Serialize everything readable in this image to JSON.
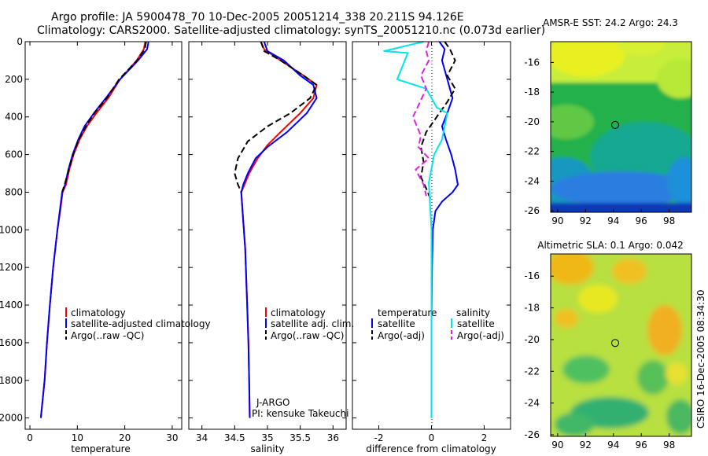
{
  "header": {
    "line1": "Argo profile: JA 5900478_70 10-Dec-2005 20051214_338 20.211S 94.126E",
    "line2": "Climatology: CARS2000. Satellite-adjusted climatology: synTS_20051210.nc (0.073d earlier)"
  },
  "credit": "CSIRO 16-Dec-2005 08:34:30",
  "colors": {
    "climatology": "#ff0000",
    "satellite": "#0000ff",
    "argo": "#000000",
    "cyan": "#00e5ee",
    "magenta": "#e020e0"
  },
  "chart_data": [
    {
      "type": "line",
      "title": "",
      "xlabel": "temperature",
      "ylabel": "",
      "xlim": [
        -1,
        32
      ],
      "ylim": [
        0,
        2060
      ],
      "xticks": [
        0,
        10,
        20,
        30
      ],
      "yticks": [
        0,
        200,
        400,
        600,
        800,
        1000,
        1200,
        1400,
        1600,
        1800,
        2000
      ],
      "y_reversed": true,
      "legend": {
        "position": "lower-right",
        "entries": [
          "climatology",
          "satellite-adjusted climatology",
          "Argo(..raw -QC)"
        ]
      },
      "series": [
        {
          "name": "climatology",
          "color": "red",
          "style": "solid",
          "x": [
            24.3,
            24.0,
            22.5,
            19.0,
            16.5,
            14.0,
            12.0,
            10.5,
            9.2,
            8.3,
            7.6,
            6.9,
            6.4,
            5.8,
            4.9,
            4.2,
            3.6,
            3.1,
            2.7,
            2.3
          ],
          "y": [
            0,
            40,
            100,
            200,
            300,
            380,
            450,
            520,
            600,
            680,
            760,
            800,
            900,
            1000,
            1200,
            1400,
            1600,
            1800,
            1900,
            2000
          ]
        },
        {
          "name": "satellite-adjusted climatology",
          "color": "blue",
          "style": "solid",
          "x": [
            25.0,
            24.7,
            22.8,
            19.0,
            16.0,
            13.5,
            11.5,
            10.2,
            9.0,
            8.1,
            7.4,
            6.8,
            6.3,
            5.8,
            4.9,
            4.2,
            3.6,
            3.1,
            2.7,
            2.3
          ],
          "y": [
            0,
            40,
            100,
            200,
            300,
            380,
            450,
            520,
            600,
            680,
            760,
            800,
            900,
            1000,
            1200,
            1400,
            1600,
            1800,
            1900,
            2000
          ]
        },
        {
          "name": "Argo(..raw -QC)",
          "color": "black",
          "style": "dashed",
          "x": [
            24.5,
            24.2,
            22.6,
            18.8,
            16.2,
            13.6,
            11.8,
            10.3,
            9.1,
            8.2,
            7.3,
            6.8
          ],
          "y": [
            0,
            40,
            100,
            200,
            300,
            380,
            450,
            520,
            600,
            680,
            760,
            800
          ]
        }
      ]
    },
    {
      "type": "line",
      "title": "",
      "xlabel": "salinity",
      "ylabel": "",
      "xlim": [
        33.8,
        36.2
      ],
      "ylim": [
        0,
        2060
      ],
      "xticks": [
        34,
        34.5,
        35,
        35.5,
        36
      ],
      "y_reversed": true,
      "legend": {
        "position": "lower-right",
        "entries": [
          "climatology",
          "satellite adj. clim.",
          "Argo(..raw -QC)"
        ]
      },
      "annotation": {
        "line1": "J-ARGO",
        "line2": "PI: kensuke Takeuchi"
      },
      "series": [
        {
          "name": "climatology",
          "color": "red",
          "style": "solid",
          "x": [
            34.9,
            34.95,
            35.2,
            35.55,
            35.75,
            35.7,
            35.5,
            35.2,
            35.0,
            34.85,
            34.72,
            34.65,
            34.6,
            34.62,
            34.66,
            34.69,
            34.71,
            34.72,
            34.73
          ],
          "y": [
            0,
            40,
            100,
            180,
            230,
            300,
            380,
            480,
            550,
            620,
            700,
            760,
            800,
            900,
            1100,
            1400,
            1600,
            1800,
            2000
          ]
        },
        {
          "name": "satellite adj. clim.",
          "color": "blue",
          "style": "solid",
          "x": [
            34.95,
            35.0,
            35.25,
            35.5,
            35.7,
            35.75,
            35.6,
            35.3,
            35.0,
            34.82,
            34.7,
            34.63,
            34.6,
            34.62,
            34.66,
            34.69,
            34.71,
            34.72,
            34.73
          ],
          "y": [
            0,
            50,
            100,
            180,
            230,
            300,
            380,
            480,
            560,
            620,
            700,
            760,
            800,
            900,
            1100,
            1400,
            1600,
            1800,
            2000
          ]
        },
        {
          "name": "Argo(..raw -QC)",
          "color": "black",
          "style": "dashed",
          "x": [
            34.9,
            34.95,
            35.2,
            35.55,
            35.75,
            35.65,
            35.35,
            35.0,
            34.7,
            34.55,
            34.5,
            34.55,
            34.6
          ],
          "y": [
            0,
            50,
            100,
            180,
            230,
            300,
            380,
            450,
            530,
            620,
            700,
            760,
            800
          ]
        }
      ]
    },
    {
      "type": "line",
      "title": "",
      "xlabel": "difference from climatology",
      "ylabel": "",
      "xlim": [
        -3,
        3
      ],
      "ylim": [
        0,
        2060
      ],
      "xticks": [
        -2,
        0,
        2
      ],
      "y_reversed": true,
      "legend": {
        "position": "lower-right",
        "col1_head": "temperature",
        "col2_head": "salinity",
        "entries": [
          "satellite",
          "Argo(-adj)",
          "satellite",
          "Argo(-adj)"
        ]
      },
      "series": [
        {
          "name": "temperature satellite",
          "color": "blue",
          "style": "solid",
          "x": [
            0.3,
            0.5,
            0.4,
            0.6,
            0.8,
            0.6,
            0.4,
            0.55,
            0.75,
            0.9,
            1.0,
            0.8,
            0.4,
            0.15,
            0.05,
            0.02,
            0.0,
            0.0,
            0.0
          ],
          "y": [
            0,
            40,
            100,
            200,
            300,
            380,
            450,
            520,
            600,
            680,
            760,
            800,
            850,
            900,
            1000,
            1200,
            1500,
            1800,
            2000
          ]
        },
        {
          "name": "temperature Argo(-adj)",
          "color": "black",
          "style": "dashed",
          "x": [
            0.5,
            0.7,
            0.9,
            0.6,
            0.9,
            0.6,
            0.2,
            -0.2,
            -0.4,
            -0.3,
            -0.4,
            -0.2,
            0.0
          ],
          "y": [
            0,
            40,
            100,
            180,
            250,
            320,
            400,
            480,
            560,
            640,
            720,
            780,
            850
          ]
        },
        {
          "name": "salinity satellite",
          "color": "cyan",
          "style": "solid",
          "x": [
            -0.3,
            -1.8,
            -0.9,
            -1.3,
            -0.2,
            0.2,
            0.6,
            0.5,
            0.4,
            0.1,
            -0.1,
            0.0,
            0.0
          ],
          "y": [
            0,
            50,
            60,
            200,
            250,
            350,
            380,
            450,
            520,
            600,
            750,
            1000,
            2000
          ]
        },
        {
          "name": "salinity Argo(-adj)",
          "color": "magenta",
          "style": "dashed",
          "x": [
            -0.1,
            -0.2,
            -0.1,
            -0.4,
            -0.2,
            -0.7,
            -0.4,
            -0.5,
            -0.1,
            -0.6,
            -0.3,
            -0.2
          ],
          "y": [
            0,
            50,
            100,
            180,
            250,
            400,
            500,
            560,
            620,
            680,
            760,
            820
          ]
        }
      ]
    },
    {
      "type": "heatmap",
      "title": "AMSR-E SST: 24.2 Argo: 24.3",
      "xlim": [
        89.5,
        99.6
      ],
      "ylim": [
        -26.1,
        -14.6
      ],
      "xticks": [
        90,
        92,
        94,
        96,
        98
      ],
      "yticks": [
        -16,
        -18,
        -20,
        -22,
        -24,
        -26
      ],
      "marker": {
        "x": 94.126,
        "y": -20.211
      }
    },
    {
      "type": "heatmap",
      "title": "Altimetric SLA: 0.1 Argo: 0.042",
      "xlim": [
        89.5,
        99.6
      ],
      "ylim": [
        -26.1,
        -14.6
      ],
      "xticks": [
        90,
        92,
        94,
        96,
        98
      ],
      "yticks": [
        -16,
        -18,
        -20,
        -22,
        -24,
        -26
      ],
      "marker": {
        "x": 94.126,
        "y": -20.211
      }
    }
  ]
}
